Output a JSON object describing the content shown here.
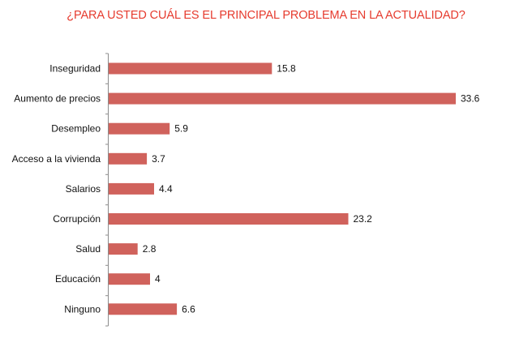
{
  "colors": {
    "title": "#e63b2e",
    "bar": "#d0625c",
    "axis": "#8c8c8c",
    "text": "#111111",
    "background": "#ffffff"
  },
  "chart_data": {
    "type": "bar",
    "orientation": "horizontal",
    "title": "¿PARA USTED CUÁL ES EL PRINCIPAL PROBLEMA EN LA ACTUALIDAD?",
    "categories": [
      "Inseguridad",
      "Aumento de precios",
      "Desempleo",
      "Acceso a la vivienda",
      "Salarios",
      "Corrupción",
      "Salud",
      "Educación",
      "Ninguno"
    ],
    "values": [
      15.8,
      33.6,
      5.9,
      3.7,
      4.4,
      23.2,
      2.8,
      4,
      6.6
    ],
    "value_labels": [
      "15.8",
      "33.6",
      "5.9",
      "3.7",
      "4.4",
      "23.2",
      "2.8",
      "4",
      "6.6"
    ],
    "xlim": [
      0,
      33.6
    ],
    "grid": false,
    "legend": "none",
    "data_labels": true
  }
}
